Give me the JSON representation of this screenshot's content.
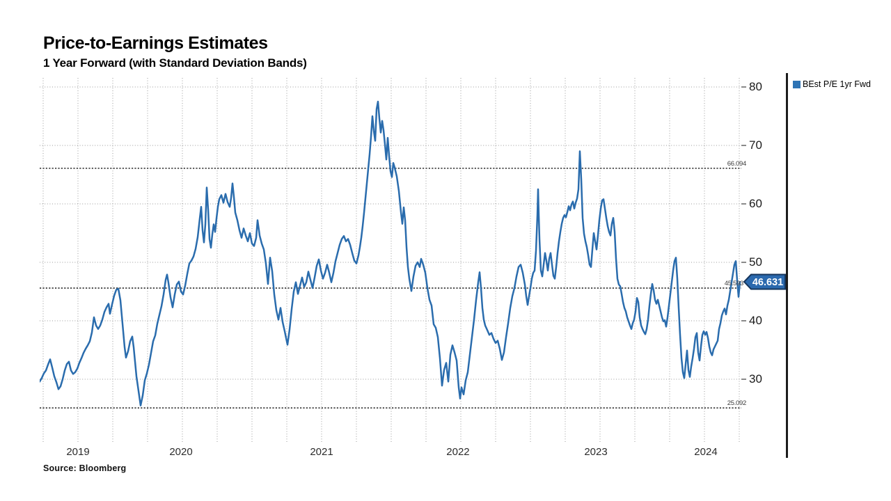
{
  "title": "Price-to-Earnings Estimates",
  "subtitle": "1 Year Forward (with Standard Deviation Bands)",
  "source": "Source: Bloomberg",
  "legend": {
    "label": "BEst P/E 1yr Fwd"
  },
  "last_value_tag": {
    "text": "46.631"
  },
  "colors": {
    "line": "#2a6cad",
    "legend_marker": "#2e74b5",
    "tag_fill": "#2b69ae",
    "tag_border": "#16365c",
    "tag_text": "#ffffff",
    "grid": "#9a9a9a",
    "band_line": "#3a3a3a",
    "divider": "#1c1c1c"
  },
  "chart_data": {
    "type": "line",
    "title": "Price-to-Earnings Estimates",
    "subtitle": "1 Year Forward (with Standard Deviation Bands)",
    "series_name": "BEst P/E 1yr Fwd",
    "legend_position": "top-right",
    "grid": "dotted, quarterly vertical + every 10 units horizontal",
    "x_domain_description": "late Dec 2018 to mid Mar 2024, daily values",
    "y_axis": {
      "ticks": [
        80,
        70,
        60,
        50,
        40,
        30
      ],
      "range": [
        19.3,
        81.5
      ]
    },
    "x_axis": {
      "year_labels": [
        {
          "text": "2019",
          "x01": 0.0546
        },
        {
          "text": "2020",
          "x01": 0.2014
        },
        {
          "text": "2021",
          "x01": 0.4018
        },
        {
          "text": "2022",
          "x01": 0.5962
        },
        {
          "text": "2023",
          "x01": 0.7927
        },
        {
          "text": "2024",
          "x01": 0.9494
        }
      ]
    },
    "bands": [
      {
        "name": "upper-std-dev",
        "value": 66.094,
        "label": "66.094"
      },
      {
        "name": "mean",
        "value": 45.593,
        "label": "45.593"
      },
      {
        "name": "lower-std-dev",
        "value": 25.092,
        "label": "25.092"
      }
    ],
    "last_value": 46.631,
    "points": [
      [
        57,
        29.6
      ],
      [
        60,
        30.2
      ],
      [
        63,
        31.0
      ],
      [
        66,
        31.5
      ],
      [
        69,
        32.5
      ],
      [
        72,
        33.4
      ],
      [
        75,
        32.0
      ],
      [
        78,
        30.5
      ],
      [
        81,
        29.5
      ],
      [
        84,
        28.3
      ],
      [
        87,
        28.8
      ],
      [
        90,
        30.0
      ],
      [
        93,
        31.5
      ],
      [
        96,
        32.6
      ],
      [
        99,
        33.0
      ],
      [
        102,
        31.5
      ],
      [
        105,
        30.9
      ],
      [
        108,
        31.2
      ],
      [
        111,
        31.8
      ],
      [
        114,
        32.8
      ],
      [
        117,
        33.6
      ],
      [
        120,
        34.5
      ],
      [
        123,
        35.2
      ],
      [
        126,
        35.8
      ],
      [
        129,
        36.5
      ],
      [
        132,
        38.0
      ],
      [
        135,
        40.6
      ],
      [
        138,
        39.2
      ],
      [
        141,
        38.6
      ],
      [
        144,
        39.2
      ],
      [
        147,
        40.2
      ],
      [
        150,
        41.5
      ],
      [
        153,
        42.3
      ],
      [
        156,
        42.9
      ],
      [
        158,
        41.2
      ],
      [
        161,
        42.8
      ],
      [
        164,
        44.3
      ],
      [
        167,
        45.3
      ],
      [
        170,
        45.5
      ],
      [
        173,
        43.5
      ],
      [
        176,
        39.5
      ],
      [
        179,
        35.5
      ],
      [
        181,
        33.7
      ],
      [
        184,
        34.8
      ],
      [
        187,
        36.5
      ],
      [
        190,
        37.3
      ],
      [
        192,
        35.5
      ],
      [
        194,
        33.0
      ],
      [
        196,
        30.5
      ],
      [
        199,
        28.0
      ],
      [
        202,
        25.5
      ],
      [
        205,
        27.2
      ],
      [
        208,
        29.8
      ],
      [
        211,
        31.0
      ],
      [
        214,
        32.5
      ],
      [
        217,
        34.5
      ],
      [
        220,
        36.5
      ],
      [
        223,
        37.5
      ],
      [
        226,
        39.5
      ],
      [
        229,
        41.0
      ],
      [
        232,
        42.5
      ],
      [
        235,
        44.5
      ],
      [
        238,
        47.0
      ],
      [
        240,
        47.9
      ],
      [
        242,
        46.5
      ],
      [
        245,
        44.0
      ],
      [
        248,
        42.3
      ],
      [
        251,
        44.5
      ],
      [
        254,
        46.2
      ],
      [
        257,
        46.7
      ],
      [
        260,
        45.0
      ],
      [
        263,
        44.5
      ],
      [
        266,
        46.0
      ],
      [
        269,
        48.0
      ],
      [
        272,
        49.8
      ],
      [
        275,
        50.3
      ],
      [
        278,
        51.0
      ],
      [
        281,
        52.3
      ],
      [
        284,
        54.3
      ],
      [
        287,
        57.5
      ],
      [
        289,
        59.5
      ],
      [
        291,
        55.5
      ],
      [
        293,
        53.4
      ],
      [
        295,
        56.5
      ],
      [
        297,
        62.8
      ],
      [
        299,
        59.0
      ],
      [
        301,
        54.0
      ],
      [
        303,
        52.5
      ],
      [
        305,
        54.8
      ],
      [
        307,
        56.5
      ],
      [
        309,
        55.2
      ],
      [
        311,
        57.5
      ],
      [
        313,
        59.5
      ],
      [
        315,
        60.8
      ],
      [
        318,
        61.5
      ],
      [
        321,
        60.2
      ],
      [
        324,
        61.7
      ],
      [
        327,
        60.3
      ],
      [
        330,
        59.5
      ],
      [
        332,
        61.0
      ],
      [
        334,
        63.5
      ],
      [
        336,
        61.2
      ],
      [
        338,
        58.5
      ],
      [
        341,
        57.2
      ],
      [
        344,
        55.5
      ],
      [
        347,
        54.2
      ],
      [
        350,
        55.8
      ],
      [
        353,
        54.6
      ],
      [
        356,
        53.6
      ],
      [
        359,
        55.0
      ],
      [
        362,
        53.2
      ],
      [
        365,
        52.8
      ],
      [
        368,
        54.2
      ],
      [
        370,
        57.2
      ],
      [
        373,
        54.6
      ],
      [
        376,
        53.2
      ],
      [
        379,
        52.2
      ],
      [
        382,
        49.8
      ],
      [
        385,
        46.3
      ],
      [
        388,
        50.8
      ],
      [
        391,
        48.5
      ],
      [
        394,
        44.5
      ],
      [
        397,
        41.8
      ],
      [
        400,
        40.2
      ],
      [
        403,
        42.2
      ],
      [
        406,
        39.8
      ],
      [
        409,
        38.2
      ],
      [
        413,
        35.9
      ],
      [
        416,
        38.5
      ],
      [
        419,
        42.0
      ],
      [
        422,
        45.0
      ],
      [
        425,
        46.6
      ],
      [
        428,
        44.6
      ],
      [
        431,
        46.0
      ],
      [
        434,
        47.4
      ],
      [
        437,
        45.8
      ],
      [
        440,
        46.6
      ],
      [
        443,
        48.4
      ],
      [
        446,
        47.0
      ],
      [
        449,
        45.6
      ],
      [
        452,
        47.4
      ],
      [
        455,
        49.4
      ],
      [
        458,
        50.5
      ],
      [
        461,
        48.6
      ],
      [
        464,
        47.2
      ],
      [
        467,
        48.2
      ],
      [
        470,
        49.6
      ],
      [
        473,
        48.2
      ],
      [
        476,
        46.6
      ],
      [
        479,
        48.2
      ],
      [
        482,
        50.2
      ],
      [
        485,
        51.6
      ],
      [
        488,
        53.0
      ],
      [
        491,
        54.0
      ],
      [
        494,
        54.5
      ],
      [
        497,
        53.6
      ],
      [
        500,
        54.0
      ],
      [
        503,
        53.0
      ],
      [
        506,
        51.6
      ],
      [
        509,
        50.3
      ],
      [
        512,
        49.8
      ],
      [
        515,
        51.2
      ],
      [
        517,
        52.6
      ],
      [
        519,
        54.2
      ],
      [
        521,
        56.2
      ],
      [
        523,
        58.5
      ],
      [
        525,
        61.0
      ],
      [
        527,
        63.5
      ],
      [
        529,
        66.0
      ],
      [
        531,
        68.5
      ],
      [
        533,
        71.5
      ],
      [
        535,
        75.0
      ],
      [
        537,
        72.5
      ],
      [
        539,
        70.8
      ],
      [
        541,
        76.2
      ],
      [
        543,
        77.5
      ],
      [
        545,
        74.6
      ],
      [
        547,
        72.2
      ],
      [
        549,
        74.2
      ],
      [
        551,
        72.6
      ],
      [
        553,
        70.2
      ],
      [
        555,
        67.6
      ],
      [
        557,
        71.3
      ],
      [
        559,
        68.2
      ],
      [
        561,
        65.6
      ],
      [
        563,
        64.6
      ],
      [
        565,
        67.0
      ],
      [
        567,
        66.2
      ],
      [
        570,
        64.7
      ],
      [
        573,
        62.2
      ],
      [
        576,
        58.6
      ],
      [
        578,
        56.6
      ],
      [
        580,
        59.4
      ],
      [
        582,
        57.2
      ],
      [
        584,
        52.6
      ],
      [
        586,
        49.2
      ],
      [
        588,
        47.2
      ],
      [
        591,
        45.1
      ],
      [
        594,
        47.6
      ],
      [
        597,
        49.4
      ],
      [
        600,
        50.0
      ],
      [
        603,
        49.2
      ],
      [
        605,
        50.6
      ],
      [
        608,
        49.6
      ],
      [
        611,
        48.2
      ],
      [
        614,
        45.6
      ],
      [
        617,
        43.6
      ],
      [
        620,
        42.6
      ],
      [
        623,
        39.4
      ],
      [
        626,
        38.8
      ],
      [
        629,
        37.2
      ],
      [
        632,
        33.6
      ],
      [
        635,
        28.9
      ],
      [
        638,
        31.6
      ],
      [
        641,
        32.8
      ],
      [
        644,
        29.6
      ],
      [
        647,
        34.2
      ],
      [
        650,
        35.8
      ],
      [
        653,
        34.6
      ],
      [
        656,
        33.2
      ],
      [
        659,
        28.6
      ],
      [
        661,
        26.7
      ],
      [
        663,
        28.6
      ],
      [
        666,
        27.4
      ],
      [
        669,
        29.8
      ],
      [
        672,
        31.2
      ],
      [
        675,
        34.2
      ],
      [
        678,
        37.2
      ],
      [
        681,
        40.2
      ],
      [
        684,
        43.6
      ],
      [
        687,
        46.6
      ],
      [
        689,
        48.3
      ],
      [
        691,
        45.6
      ],
      [
        693,
        42.2
      ],
      [
        695,
        40.2
      ],
      [
        697,
        39.2
      ],
      [
        700,
        38.4
      ],
      [
        703,
        37.6
      ],
      [
        706,
        37.9
      ],
      [
        709,
        36.9
      ],
      [
        712,
        36.2
      ],
      [
        715,
        36.6
      ],
      [
        718,
        35.2
      ],
      [
        721,
        33.3
      ],
      [
        724,
        34.6
      ],
      [
        727,
        37.2
      ],
      [
        730,
        39.6
      ],
      [
        733,
        42.2
      ],
      [
        736,
        44.2
      ],
      [
        739,
        45.6
      ],
      [
        742,
        47.6
      ],
      [
        745,
        49.2
      ],
      [
        748,
        49.6
      ],
      [
        751,
        48.2
      ],
      [
        754,
        46.2
      ],
      [
        756,
        44.2
      ],
      [
        758,
        42.7
      ],
      [
        760,
        44.2
      ],
      [
        762,
        45.6
      ],
      [
        764,
        47.2
      ],
      [
        766,
        48.2
      ],
      [
        768,
        48.6
      ],
      [
        770,
        52.0
      ],
      [
        772,
        58.0
      ],
      [
        773,
        62.5
      ],
      [
        774,
        58.0
      ],
      [
        775,
        54.0
      ],
      [
        777,
        48.6
      ],
      [
        779,
        47.6
      ],
      [
        781,
        49.6
      ],
      [
        783,
        51.6
      ],
      [
        785,
        50.2
      ],
      [
        787,
        48.6
      ],
      [
        789,
        50.6
      ],
      [
        791,
        51.6
      ],
      [
        793,
        49.6
      ],
      [
        795,
        47.7
      ],
      [
        797,
        47.2
      ],
      [
        799,
        49.2
      ],
      [
        801,
        51.6
      ],
      [
        803,
        53.6
      ],
      [
        805,
        55.2
      ],
      [
        807,
        56.6
      ],
      [
        809,
        57.6
      ],
      [
        811,
        58.1
      ],
      [
        813,
        57.7
      ],
      [
        815,
        58.6
      ],
      [
        817,
        59.6
      ],
      [
        819,
        58.9
      ],
      [
        821,
        59.9
      ],
      [
        823,
        60.4
      ],
      [
        825,
        59.2
      ],
      [
        827,
        60.2
      ],
      [
        829,
        60.9
      ],
      [
        831,
        62.5
      ],
      [
        833,
        69.0
      ],
      [
        835,
        64.2
      ],
      [
        837,
        57.6
      ],
      [
        839,
        54.9
      ],
      [
        841,
        53.6
      ],
      [
        843,
        52.6
      ],
      [
        845,
        51.2
      ],
      [
        847,
        49.6
      ],
      [
        849,
        49.2
      ],
      [
        851,
        52.2
      ],
      [
        853,
        55.0
      ],
      [
        855,
        53.6
      ],
      [
        857,
        52.2
      ],
      [
        859,
        54.6
      ],
      [
        861,
        57.2
      ],
      [
        863,
        59.2
      ],
      [
        865,
        60.6
      ],
      [
        867,
        60.8
      ],
      [
        869,
        59.2
      ],
      [
        871,
        57.6
      ],
      [
        873,
        56.2
      ],
      [
        875,
        55.2
      ],
      [
        877,
        54.6
      ],
      [
        879,
        56.6
      ],
      [
        881,
        57.6
      ],
      [
        883,
        55.2
      ],
      [
        885,
        50.6
      ],
      [
        887,
        47.2
      ],
      [
        889,
        46.2
      ],
      [
        891,
        45.9
      ],
      [
        893,
        44.6
      ],
      [
        895,
        43.2
      ],
      [
        897,
        42.2
      ],
      [
        899,
        41.6
      ],
      [
        901,
        40.6
      ],
      [
        903,
        39.9
      ],
      [
        905,
        39.2
      ],
      [
        907,
        38.6
      ],
      [
        909,
        39.6
      ],
      [
        911,
        40.2
      ],
      [
        913,
        41.6
      ],
      [
        915,
        43.9
      ],
      [
        917,
        43.2
      ],
      [
        919,
        40.6
      ],
      [
        921,
        39.2
      ],
      [
        923,
        38.6
      ],
      [
        925,
        38.1
      ],
      [
        927,
        37.7
      ],
      [
        929,
        38.6
      ],
      [
        931,
        40.2
      ],
      [
        933,
        42.6
      ],
      [
        935,
        44.6
      ],
      [
        937,
        46.3
      ],
      [
        939,
        45.2
      ],
      [
        941,
        43.6
      ],
      [
        943,
        42.9
      ],
      [
        945,
        43.6
      ],
      [
        947,
        42.6
      ],
      [
        949,
        41.6
      ],
      [
        951,
        40.6
      ],
      [
        953,
        39.9
      ],
      [
        955,
        40.1
      ],
      [
        957,
        39.0
      ],
      [
        959,
        40.6
      ],
      [
        961,
        42.6
      ],
      [
        963,
        44.6
      ],
      [
        965,
        46.6
      ],
      [
        967,
        48.6
      ],
      [
        969,
        50.2
      ],
      [
        971,
        50.8
      ],
      [
        973,
        47.2
      ],
      [
        975,
        42.2
      ],
      [
        977,
        37.6
      ],
      [
        979,
        33.6
      ],
      [
        981,
        31.2
      ],
      [
        983,
        30.2
      ],
      [
        985,
        32.6
      ],
      [
        987,
        34.9
      ],
      [
        989,
        31.6
      ],
      [
        991,
        30.4
      ],
      [
        993,
        32.2
      ],
      [
        995,
        33.6
      ],
      [
        997,
        35.2
      ],
      [
        999,
        37.2
      ],
      [
        1001,
        37.9
      ],
      [
        1003,
        34.6
      ],
      [
        1005,
        33.2
      ],
      [
        1007,
        35.6
      ],
      [
        1009,
        37.6
      ],
      [
        1011,
        38.2
      ],
      [
        1013,
        37.6
      ],
      [
        1015,
        38.1
      ],
      [
        1017,
        37.1
      ],
      [
        1019,
        35.6
      ],
      [
        1021,
        34.6
      ],
      [
        1023,
        34.1
      ],
      [
        1025,
        35.1
      ],
      [
        1027,
        35.6
      ],
      [
        1029,
        36.1
      ],
      [
        1031,
        36.6
      ],
      [
        1033,
        38.6
      ],
      [
        1035,
        39.6
      ],
      [
        1037,
        40.9
      ],
      [
        1039,
        41.6
      ],
      [
        1041,
        42.1
      ],
      [
        1043,
        41.1
      ],
      [
        1045,
        42.6
      ],
      [
        1047,
        43.6
      ],
      [
        1049,
        45.1
      ],
      [
        1051,
        46.6
      ],
      [
        1053,
        48.1
      ],
      [
        1055,
        49.6
      ],
      [
        1057,
        50.2
      ],
      [
        1059,
        46.9
      ],
      [
        1061,
        44.1
      ],
      [
        1063,
        46.631
      ]
    ]
  }
}
